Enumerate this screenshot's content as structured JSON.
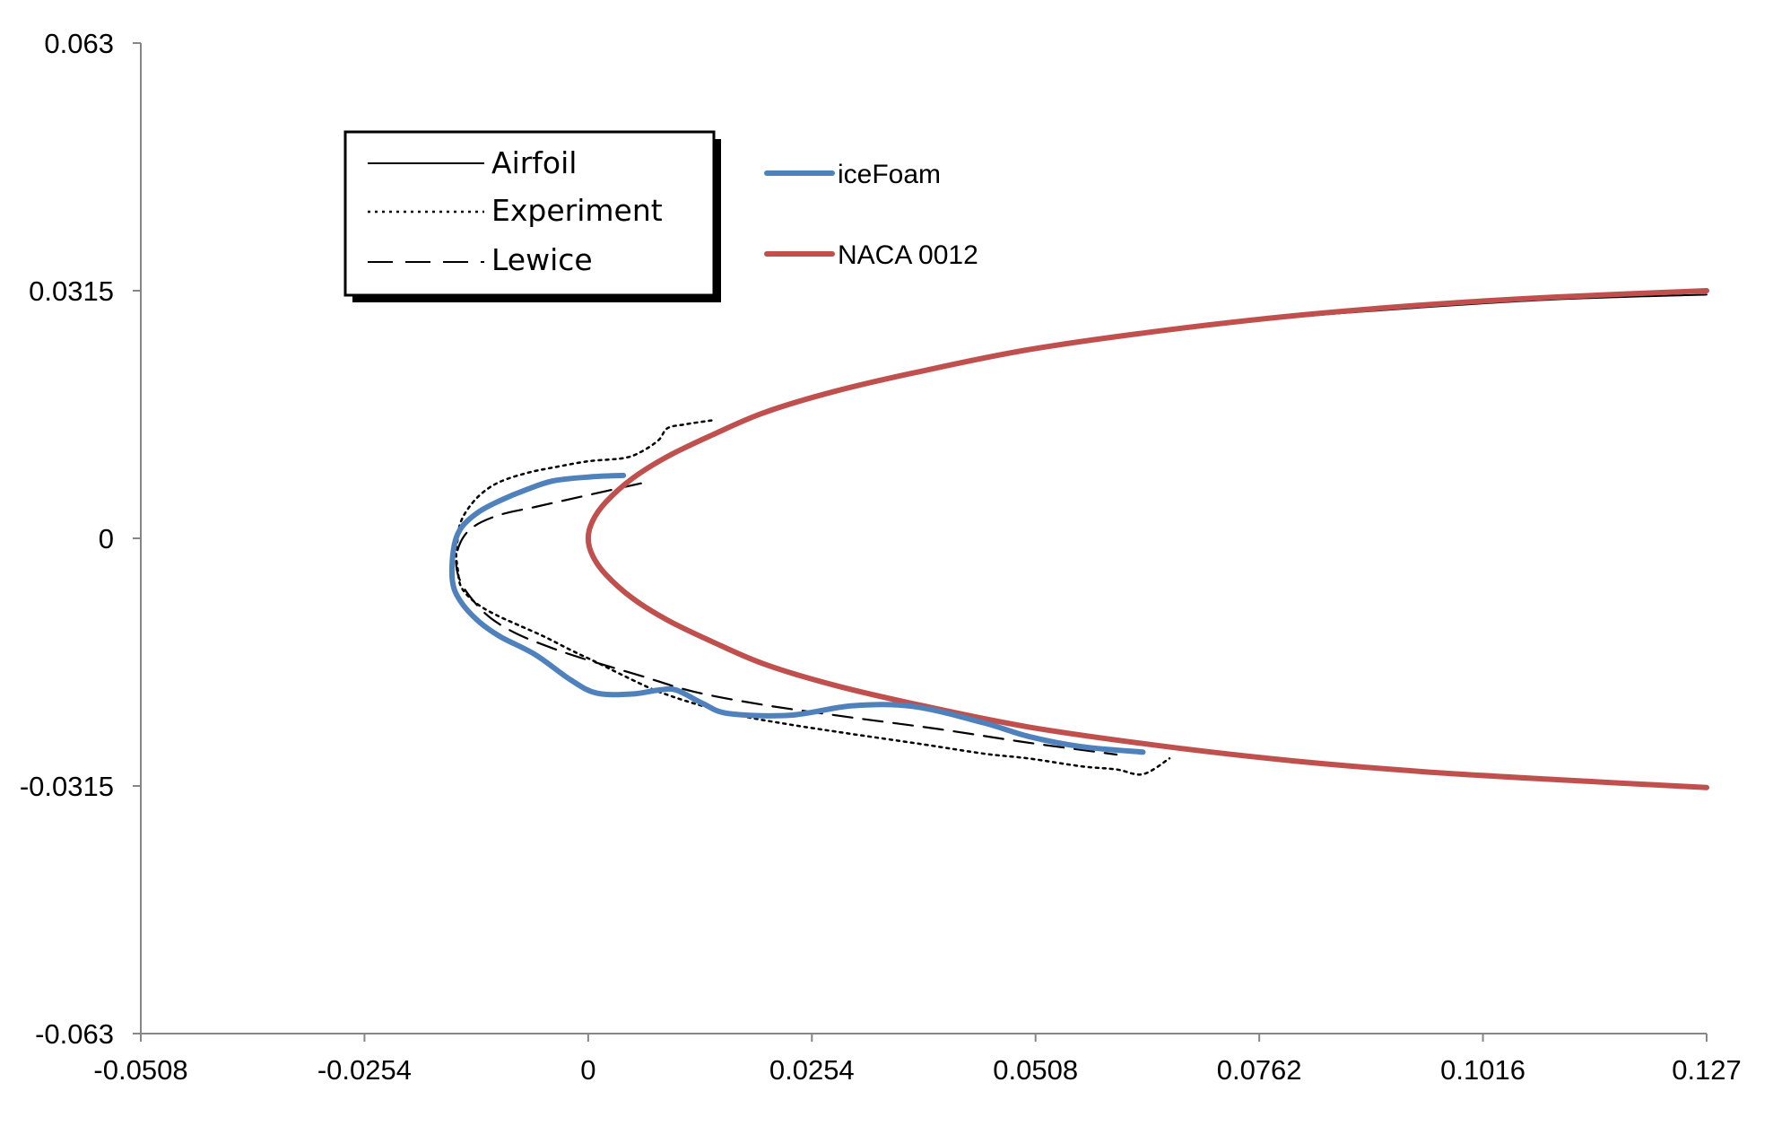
{
  "chart_data": {
    "type": "line",
    "title": "",
    "xlabel": "",
    "ylabel": "",
    "xlim": [
      -0.0508,
      0.127
    ],
    "ylim": [
      -0.063,
      0.063
    ],
    "x_ticks": [
      "-0.0508",
      "-0.0254",
      "0",
      "0.0254",
      "0.0508",
      "0.0762",
      "0.1016",
      "0.127"
    ],
    "y_ticks": [
      "0.063",
      "0.0315",
      "0",
      "-0.0315",
      "-0.063"
    ],
    "grid": false,
    "legends": [
      {
        "placement": "top-left inset box",
        "entries": [
          {
            "name": "Airfoil",
            "style": "solid"
          },
          {
            "name": "Experiment",
            "style": "dotted"
          },
          {
            "name": "Lewice",
            "style": "dashed"
          }
        ]
      },
      {
        "placement": "top-center",
        "entries": [
          {
            "name": "iceFoam",
            "color": "#4F81BD"
          },
          {
            "name": "NACA 0012",
            "color": "#C0504D"
          }
        ]
      }
    ],
    "series": [
      {
        "name": "NACA 0012",
        "color": "#C0504D",
        "points": [
          [
            0.127,
            0.0315
          ],
          [
            0.11,
            0.0307
          ],
          [
            0.095,
            0.0297
          ],
          [
            0.08,
            0.0283
          ],
          [
            0.065,
            0.0264
          ],
          [
            0.05,
            0.024
          ],
          [
            0.038,
            0.0213
          ],
          [
            0.028,
            0.0187
          ],
          [
            0.02,
            0.016
          ],
          [
            0.014,
            0.0131
          ],
          [
            0.009,
            0.0104
          ],
          [
            0.005,
            0.0076
          ],
          [
            0.002,
            0.0046
          ],
          [
            0.0005,
            0.0022
          ],
          [
            0,
            0
          ],
          [
            0.0005,
            -0.0022
          ],
          [
            0.002,
            -0.0046
          ],
          [
            0.005,
            -0.0076
          ],
          [
            0.009,
            -0.0104
          ],
          [
            0.014,
            -0.0131
          ],
          [
            0.02,
            -0.016
          ],
          [
            0.028,
            -0.0187
          ],
          [
            0.038,
            -0.0213
          ],
          [
            0.05,
            -0.024
          ],
          [
            0.065,
            -0.0264
          ],
          [
            0.08,
            -0.0283
          ],
          [
            0.095,
            -0.0297
          ],
          [
            0.11,
            -0.0307
          ],
          [
            0.127,
            -0.0317
          ]
        ]
      },
      {
        "name": "Airfoil",
        "color": "#000000",
        "points": [
          [
            0.127,
            0.031
          ],
          [
            0.11,
            0.0304
          ],
          [
            0.095,
            0.0294
          ],
          [
            0.08,
            0.0281
          ],
          [
            0.065,
            0.0262
          ],
          [
            0.05,
            0.0238
          ],
          [
            0.038,
            0.0211
          ],
          [
            0.028,
            0.0185
          ],
          [
            0.02,
            0.0158
          ],
          [
            0.014,
            0.013
          ],
          [
            0.009,
            0.0103
          ],
          [
            0.005,
            0.0075
          ],
          [
            0.002,
            0.0045
          ],
          [
            0.0005,
            0.0021
          ],
          [
            0,
            0
          ],
          [
            0.0005,
            -0.0021
          ],
          [
            0.002,
            -0.0045
          ],
          [
            0.005,
            -0.0075
          ],
          [
            0.009,
            -0.0103
          ],
          [
            0.014,
            -0.013
          ],
          [
            0.02,
            -0.0158
          ],
          [
            0.028,
            -0.0186
          ],
          [
            0.038,
            -0.0212
          ],
          [
            0.05,
            -0.0239
          ],
          [
            0.065,
            -0.0264
          ],
          [
            0.08,
            -0.0283
          ],
          [
            0.095,
            -0.0297
          ],
          [
            0.11,
            -0.0307
          ],
          [
            0.127,
            -0.0316
          ]
        ]
      },
      {
        "name": "Experiment",
        "color": "#000000",
        "points": [
          [
            0.014,
            0.015
          ],
          [
            0.011,
            0.0145
          ],
          [
            0.009,
            0.014
          ],
          [
            0.008,
            0.0125
          ],
          [
            0.006,
            0.011
          ],
          [
            0.004,
            0.0102
          ],
          [
            0.0,
            0.0098
          ],
          [
            -0.004,
            0.009
          ],
          [
            -0.007,
            0.0083
          ],
          [
            -0.01,
            0.0072
          ],
          [
            -0.012,
            0.0058
          ],
          [
            -0.0135,
            0.004
          ],
          [
            -0.0145,
            0.002
          ],
          [
            -0.0148,
            0.0
          ],
          [
            -0.015,
            -0.002
          ],
          [
            -0.0148,
            -0.004
          ],
          [
            -0.0145,
            -0.006
          ],
          [
            -0.0135,
            -0.0075
          ],
          [
            -0.012,
            -0.0088
          ],
          [
            -0.01,
            -0.01
          ],
          [
            -0.008,
            -0.011
          ],
          [
            -0.005,
            -0.0125
          ],
          [
            -0.002,
            -0.0142
          ],
          [
            0.001,
            -0.0158
          ],
          [
            0.005,
            -0.018
          ],
          [
            0.008,
            -0.0195
          ],
          [
            0.012,
            -0.021
          ],
          [
            0.017,
            -0.0225
          ],
          [
            0.023,
            -0.0237
          ],
          [
            0.03,
            -0.0249
          ],
          [
            0.038,
            -0.0262
          ],
          [
            0.045,
            -0.0274
          ],
          [
            0.05,
            -0.028
          ],
          [
            0.056,
            -0.029
          ],
          [
            0.06,
            -0.0294
          ],
          [
            0.063,
            -0.03
          ],
          [
            0.066,
            -0.028
          ]
        ]
      },
      {
        "name": "Lewice",
        "color": "#000000",
        "points": [
          [
            0.006,
            0.007
          ],
          [
            0.002,
            0.006
          ],
          [
            -0.002,
            0.005
          ],
          [
            -0.006,
            0.004
          ],
          [
            -0.01,
            0.003
          ],
          [
            -0.013,
            0.0015
          ],
          [
            -0.0145,
            -0.0005
          ],
          [
            -0.015,
            -0.003
          ],
          [
            -0.0145,
            -0.0055
          ],
          [
            -0.013,
            -0.008
          ],
          [
            -0.011,
            -0.0102
          ],
          [
            -0.008,
            -0.0122
          ],
          [
            -0.004,
            -0.014
          ],
          [
            0.0,
            -0.0155
          ],
          [
            0.006,
            -0.0175
          ],
          [
            0.012,
            -0.0195
          ],
          [
            0.02,
            -0.0212
          ],
          [
            0.03,
            -0.0228
          ],
          [
            0.04,
            -0.0243
          ],
          [
            0.05,
            -0.026
          ],
          [
            0.06,
            -0.0275
          ]
        ]
      },
      {
        "name": "iceFoam",
        "color": "#4F81BD",
        "points": [
          [
            0.004,
            0.008
          ],
          [
            0.0,
            0.0078
          ],
          [
            -0.004,
            0.0073
          ],
          [
            -0.007,
            0.0062
          ],
          [
            -0.01,
            0.0048
          ],
          [
            -0.0125,
            0.0033
          ],
          [
            -0.0145,
            0.0012
          ],
          [
            -0.0153,
            -0.0015
          ],
          [
            -0.0154,
            -0.0055
          ],
          [
            -0.0145,
            -0.008
          ],
          [
            -0.0125,
            -0.0105
          ],
          [
            -0.01,
            -0.0125
          ],
          [
            -0.006,
            -0.0148
          ],
          [
            -0.002,
            -0.018
          ],
          [
            0.001,
            -0.0197
          ],
          [
            0.005,
            -0.0198
          ],
          [
            0.008,
            -0.0193
          ],
          [
            0.01,
            -0.0193
          ],
          [
            0.013,
            -0.021
          ],
          [
            0.016,
            -0.0223
          ],
          [
            0.023,
            -0.0225
          ],
          [
            0.03,
            -0.0213
          ],
          [
            0.037,
            -0.0214
          ],
          [
            0.045,
            -0.0235
          ],
          [
            0.05,
            -0.0252
          ],
          [
            0.056,
            -0.0265
          ],
          [
            0.063,
            -0.0272
          ]
        ]
      }
    ]
  }
}
